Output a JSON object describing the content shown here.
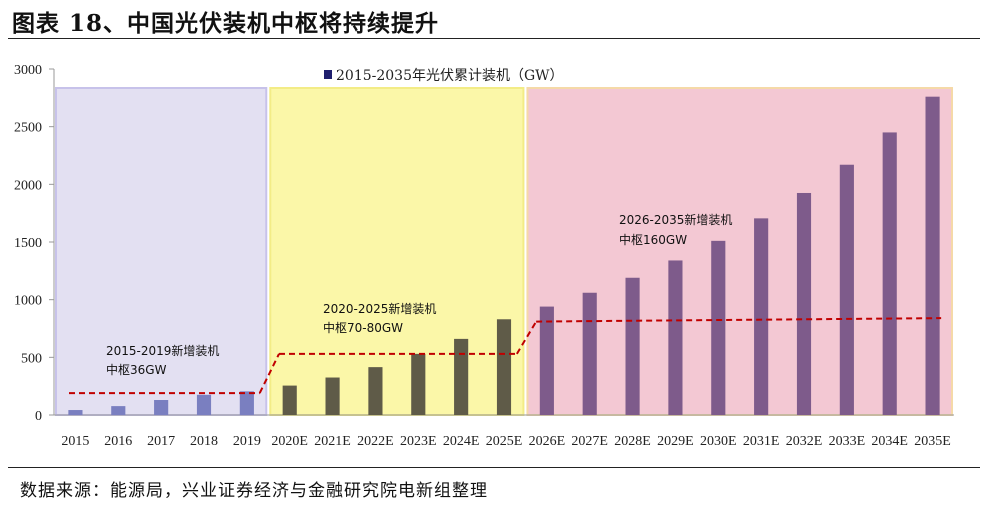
{
  "header": {
    "title": "图表 18、中国光伏装机中枢将持续提升"
  },
  "footer": {
    "source": "数据来源：能源局，兴业证券经济与金融研究院电新组整理"
  },
  "colors": {
    "region1_bg": "#e3e0f2",
    "region1_border": "#c7c2ea",
    "region2_bg": "#fbf7a8",
    "region2_border": "#f3ec86",
    "region3_bg": "#f3c8d3",
    "region3_border": "#f5d9a8",
    "bar1": "#7a7fc0",
    "bar2": "#5f5b48",
    "bar3": "#7e5b8b",
    "dash": "#c00000",
    "legend": "#1f1f6e"
  },
  "chart_data": {
    "type": "bar",
    "legend": "2015-2035年光伏累计装机（GW）",
    "categories": [
      "2015",
      "2016",
      "2017",
      "2018",
      "2019",
      "2020E",
      "2021E",
      "2022E",
      "2023E",
      "2024E",
      "2025E",
      "2026E",
      "2027E",
      "2028E",
      "2029E",
      "2030E",
      "2031E",
      "2032E",
      "2033E",
      "2034E",
      "2035E"
    ],
    "values": [
      43,
      77,
      130,
      175,
      205,
      255,
      325,
      415,
      530,
      660,
      830,
      940,
      1060,
      1190,
      1340,
      1510,
      1705,
      1925,
      2170,
      2450,
      2760
    ],
    "ylim": [
      0,
      3000
    ],
    "yticks": [
      "0",
      "500",
      "1000",
      "1500",
      "2000",
      "2500",
      "3000"
    ],
    "periods": [
      {
        "name": "2015-2019",
        "start": 0,
        "end": 4,
        "line_start": 190,
        "line_end": 190
      },
      {
        "name": "2020-2025",
        "start": 5,
        "end": 10,
        "line_start": 530,
        "line_end": 530
      },
      {
        "name": "2026-2035",
        "start": 11,
        "end": 20,
        "line_start": 810,
        "line_end": 840
      }
    ],
    "annotations": [
      {
        "line1": "2015-2019新增装机",
        "line2": "中枢36GW"
      },
      {
        "line1": "2020-2025新增装机",
        "line2": "中枢70-80GW"
      },
      {
        "line1": "2026-2035新增装机",
        "line2": "中枢160GW"
      }
    ]
  }
}
